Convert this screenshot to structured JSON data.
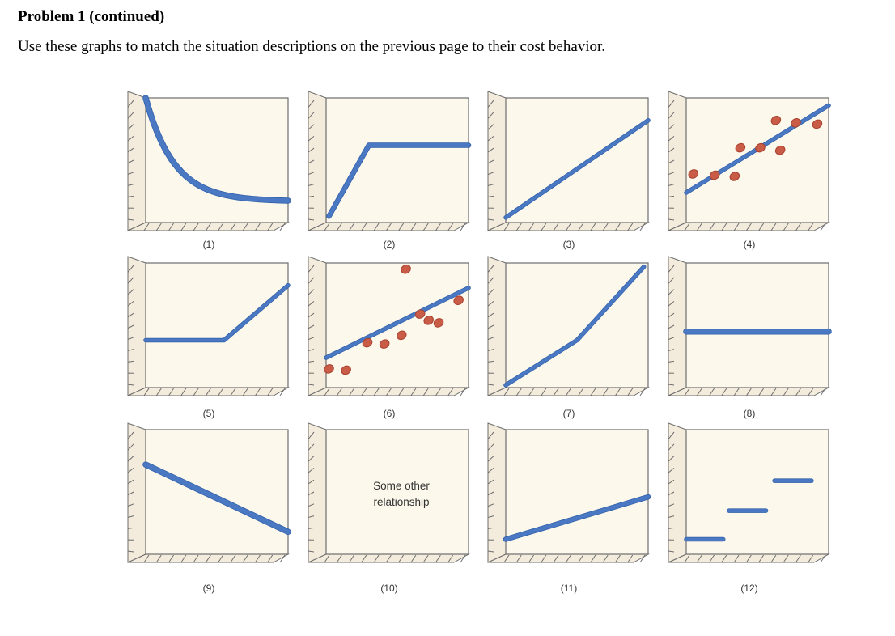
{
  "problem_heading": "Problem 1 (continued)",
  "instruction": "Use these graphs to match the situation descriptions on the previous page to their cost behavior.",
  "colors": {
    "panel_fill": "#fdf8ec",
    "line": "#4a78c2",
    "line_dark": "#2f5fa8",
    "dot": "#c95c47",
    "axis": "#6d6d6d"
  },
  "graphs": [
    {
      "label": "(1)",
      "shape": "curve-decreasing"
    },
    {
      "label": "(2)",
      "shape": "rise-then-flat"
    },
    {
      "label": "(3)",
      "shape": "line-increasing"
    },
    {
      "label": "(4)",
      "shape": "scatter-with-trend"
    },
    {
      "label": "(5)",
      "shape": "flat-then-rise"
    },
    {
      "label": "(6)",
      "shape": "scatter-with-trend"
    },
    {
      "label": "(7)",
      "shape": "piecewise-increasing"
    },
    {
      "label": "(8)",
      "shape": "horizontal-line"
    },
    {
      "label": "(9)",
      "shape": "line-decreasing"
    },
    {
      "label": "(10)",
      "shape": "text",
      "text": [
        "Some other",
        "relationship"
      ]
    },
    {
      "label": "(11)",
      "shape": "line-increasing-offset"
    },
    {
      "label": "(12)",
      "shape": "step"
    }
  ]
}
